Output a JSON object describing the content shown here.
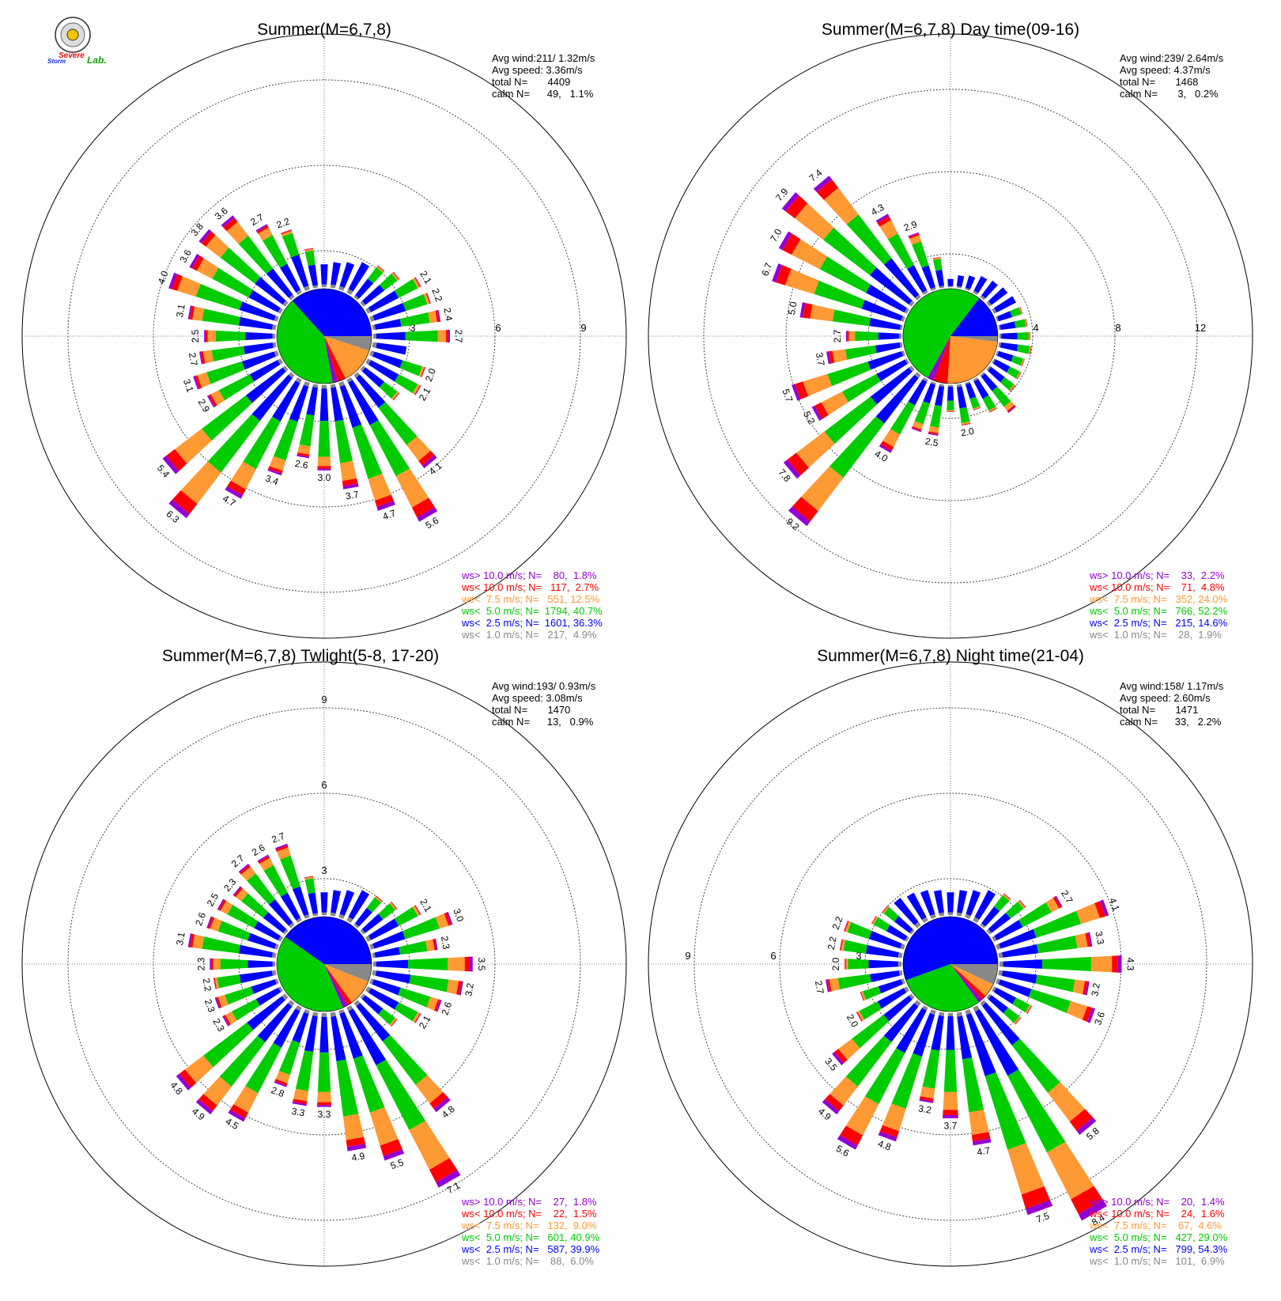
{
  "logo": {
    "lab_word_1": "Severe",
    "lab_word_2": "Storm",
    "lab_word_3": "Lab."
  },
  "colors": {
    "gt10": "#9400D3",
    "lt10": "#FF0000",
    "lt75": "#FF9933",
    "lt5": "#00CC00",
    "lt25": "#0000FF",
    "lt1": "#888888"
  },
  "chart_data": [
    {
      "type": "windrose",
      "title": "Summer(M=6,7,8)",
      "ring_labels": [
        "3",
        "6",
        "9"
      ],
      "ring_max": 9,
      "stats": [
        "Avg wind:211/ 1.32m/s",
        "Avg speed: 3.36m/s",
        "total N=       4409",
        "calm N=      49,   1.1%"
      ],
      "legend": [
        "ws> 10.0 m/s; N=    80,  1.8%",
        "ws< 10.0 m/s; N=   117,  2.7%",
        "ws<  7.5 m/s; N=   551, 12.5%",
        "ws<  5.0 m/s; N=  1794, 40.7%",
        "ws<  2.5 m/s; N=  1601, 36.3%",
        "ws<  1.0 m/s; N=   217,  4.9%"
      ],
      "pie_percent": {
        "lt1": 4.9,
        "lt25": 36.3,
        "lt5": 40.7,
        "lt75": 12.5,
        "lt10": 2.7,
        "gt10": 1.8
      },
      "petal_totals": [
        0.8,
        0.9,
        1.0,
        1.2,
        1.4,
        1.6,
        2.1,
        2.2,
        2.4,
        2.7,
        1.2,
        2.0,
        2.1,
        1.6,
        4.1,
        5.6,
        4.7,
        3.7,
        3.0,
        2.6,
        3.4,
        4.7,
        6.3,
        5.4,
        2.9,
        3.1,
        2.7,
        2.5,
        3.1,
        4.0,
        3.6,
        3.8,
        3.6,
        2.7,
        2.2,
        1.4
      ],
      "petal_labels": [
        null,
        null,
        null,
        null,
        null,
        null,
        "2.1",
        "2.2",
        "2.4",
        "2.7",
        null,
        "2.0",
        "2.1",
        null,
        "4.1",
        "5.6",
        "4.7",
        "3.7",
        "3.0",
        "2.6",
        "3.4",
        "4.7",
        "6.3",
        "5.4",
        "2.9",
        "3.1",
        "2.7",
        "2.5",
        "3.1",
        "4.0",
        "3.6",
        "3.8",
        "3.6",
        "2.7",
        "2.2",
        null
      ]
    },
    {
      "type": "windrose",
      "title": "Summer(M=6,7,8) Day time(09-16)",
      "ring_labels": [
        "4",
        "8",
        "12"
      ],
      "ring_max": 12,
      "stats": [
        "Avg wind:239/ 2.64m/s",
        "Avg speed: 4.37m/s",
        "total N=       1468",
        "calm N=       3,   0.2%"
      ],
      "legend": [
        "ws> 10.0 m/s; N=    33,  2.2%",
        "ws< 10.0 m/s; N=    71,  4.8%",
        "ws<  7.5 m/s; N=   352, 24.0%",
        "ws<  5.0 m/s; N=   766, 52.2%",
        "ws<  2.5 m/s; N=   215, 14.6%",
        "ws<  1.0 m/s; N=    28,  1.9%"
      ],
      "pie_percent": {
        "lt1": 1.9,
        "lt25": 14.6,
        "lt5": 52.2,
        "lt75": 24.0,
        "lt10": 4.8,
        "gt10": 2.2
      },
      "petal_totals": [
        0.4,
        0.6,
        0.7,
        0.9,
        1.0,
        1.1,
        1.2,
        1.3,
        1.4,
        1.5,
        1.6,
        1.4,
        1.5,
        1.6,
        2.3,
        1.8,
        1.4,
        2.0,
        1.3,
        2.5,
        2.5,
        4.0,
        9.2,
        7.8,
        5.2,
        5.7,
        3.7,
        2.7,
        5.0,
        6.7,
        7.0,
        7.9,
        7.4,
        4.3,
        2.9,
        1.5
      ],
      "petal_labels": [
        null,
        null,
        null,
        null,
        null,
        null,
        null,
        null,
        null,
        null,
        null,
        null,
        null,
        null,
        null,
        null,
        null,
        "2.0",
        null,
        "2.5",
        null,
        "4.0",
        "9.2",
        "7.8",
        "5.2",
        "5.7",
        "3.7",
        "2.7",
        "5.0",
        "6.7",
        "7.0",
        "7.9",
        "7.4",
        "4.3",
        "2.9",
        null
      ]
    },
    {
      "type": "windrose",
      "title": "Summer(M=6,7,8) Twlight(5-8, 17-20)",
      "ring_labels": [
        "3",
        "6",
        "9"
      ],
      "ring_max": 9,
      "stats": [
        "Avg wind:193/ 0.93m/s",
        "Avg speed: 3.08m/s",
        "total N=       1470",
        "calm N=      13,   0.9%"
      ],
      "legend": [
        "ws> 10.0 m/s; N=    27,  1.8%",
        "ws< 10.0 m/s; N=    22,  1.5%",
        "ws<  7.5 m/s; N=   132,  9.0%",
        "ws<  5.0 m/s; N=   601, 40.9%",
        "ws<  2.5 m/s; N=   587, 39.9%",
        "ws<  1.0 m/s; N=    88,  6.0%"
      ],
      "pie_percent": {
        "lt1": 6.0,
        "lt25": 39.9,
        "lt5": 40.9,
        "lt75": 9.0,
        "lt10": 1.5,
        "gt10": 1.8
      },
      "petal_totals": [
        0.8,
        0.9,
        1.0,
        1.2,
        1.3,
        1.5,
        2.1,
        3.0,
        2.3,
        3.5,
        3.2,
        2.6,
        2.1,
        1.5,
        4.8,
        7.1,
        5.5,
        4.9,
        3.3,
        3.3,
        2.8,
        4.5,
        4.9,
        4.8,
        2.3,
        2.3,
        2.2,
        2.3,
        3.1,
        2.6,
        2.5,
        2.3,
        2.7,
        2.6,
        2.7,
        1.4
      ],
      "petal_labels": [
        null,
        null,
        null,
        null,
        null,
        null,
        "2.1",
        "3.0",
        "2.3",
        "3.5",
        "3.2",
        "2.6",
        "2.1",
        null,
        "4.8",
        "7.1",
        "5.5",
        "4.9",
        "3.3",
        "3.3",
        "2.8",
        "4.5",
        "4.9",
        "4.8",
        "2.3",
        "2.3",
        "2.2",
        "2.3",
        "3.1",
        "2.6",
        "2.5",
        "2.3",
        "2.7",
        "2.6",
        "2.7",
        null
      ]
    },
    {
      "type": "windrose",
      "title": "Summer(M=6,7,8) Night time(21-04)",
      "ring_labels": [
        "3",
        "6",
        "9"
      ],
      "ring_max": 9,
      "stats": [
        "Avg wind:158/ 1.17m/s",
        "Avg speed: 2.60m/s",
        "total N=       1471",
        "calm N=      33,   2.2%"
      ],
      "legend": [
        "ws> 10.0 m/s; N=    20,  1.4%",
        "ws< 10.0 m/s; N=    24,  1.6%",
        "ws<  7.5 m/s; N=    67,  4.6%",
        "ws<  5.0 m/s; N=   427, 29.0%",
        "ws<  2.5 m/s; N=   799, 54.3%",
        "ws<  1.0 m/s; N=   101,  6.9%"
      ],
      "pie_percent": {
        "lt1": 6.9,
        "lt25": 54.3,
        "lt5": 29.0,
        "lt75": 4.6,
        "lt10": 1.6,
        "gt10": 1.4
      },
      "petal_totals": [
        0.8,
        0.9,
        1.0,
        1.2,
        1.4,
        1.6,
        2.7,
        4.1,
        3.3,
        4.3,
        3.2,
        3.6,
        1.5,
        1.4,
        5.8,
        8.4,
        7.5,
        4.7,
        3.7,
        3.2,
        4.8,
        5.6,
        4.9,
        3.5,
        2.0,
        1.6,
        2.7,
        2.0,
        2.2,
        2.2,
        1.4,
        1.3,
        1.2,
        1.1,
        1.0,
        0.9
      ],
      "petal_labels": [
        null,
        null,
        null,
        null,
        null,
        null,
        "2.7",
        "4.1",
        "3.3",
        "4.3",
        "3.2",
        "3.6",
        null,
        null,
        "5.8",
        "8.4",
        "7.5",
        "4.7",
        "3.7",
        "3.2",
        "4.8",
        "5.6",
        "4.9",
        "3.5",
        "2.0",
        null,
        "2.7",
        "2.0",
        "2.2",
        "2.2",
        null,
        null,
        null,
        null,
        null,
        null
      ]
    }
  ]
}
